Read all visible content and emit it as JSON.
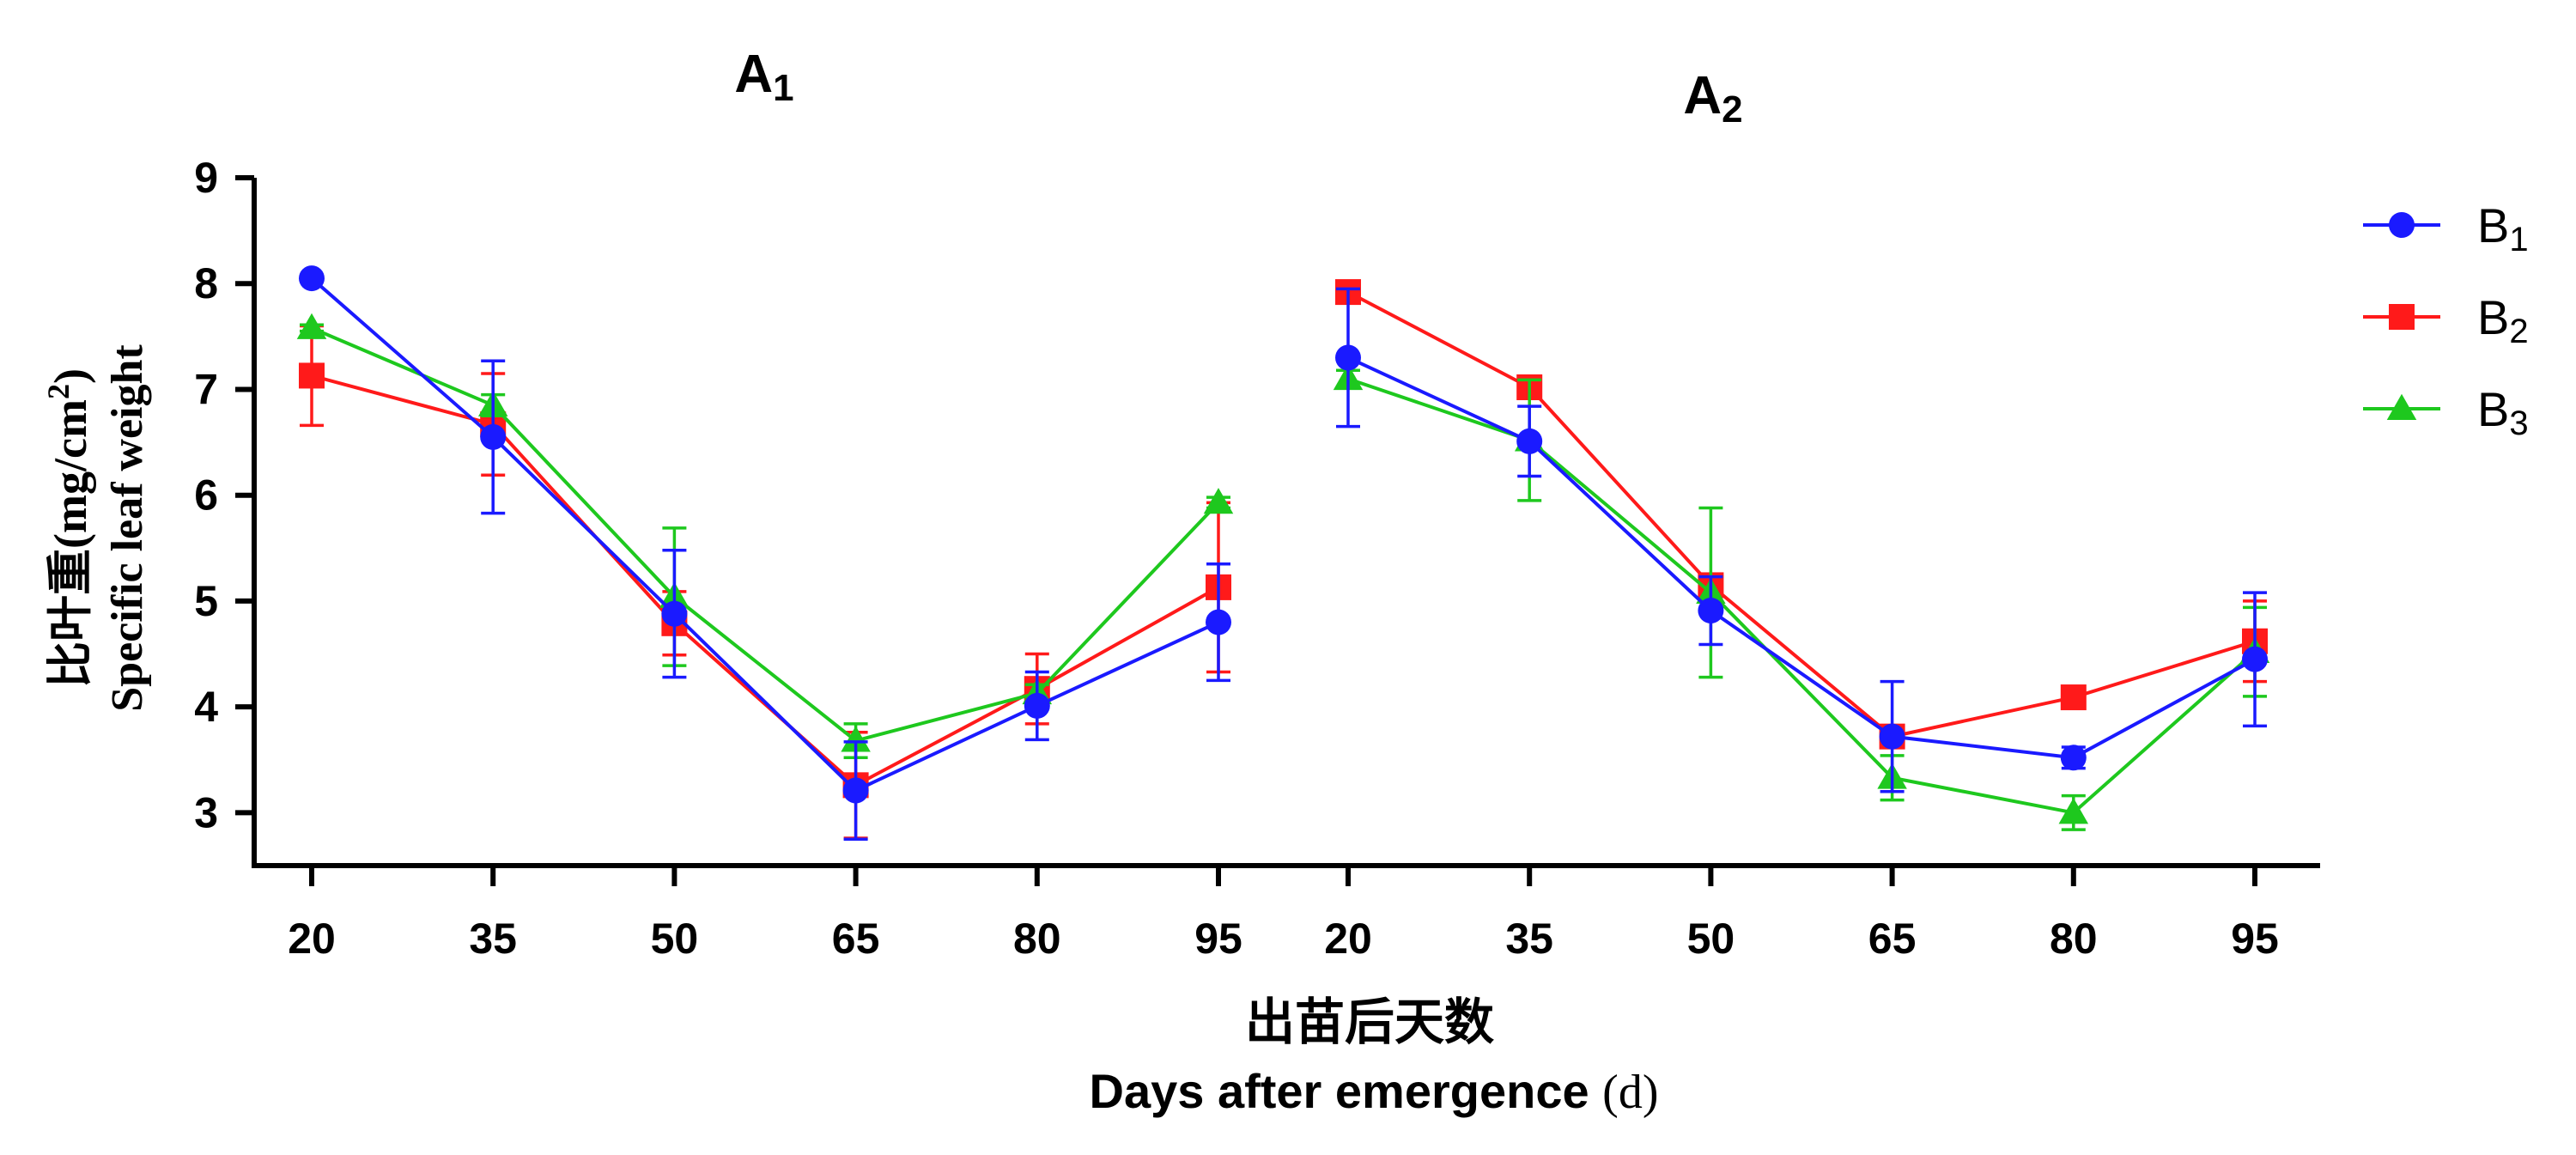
{
  "chart_data": {
    "type": "line",
    "panels": [
      {
        "title": "A",
        "title_sub": "1"
      },
      {
        "title": "A",
        "title_sub": "2"
      }
    ],
    "x": [
      20,
      35,
      50,
      65,
      80,
      95
    ],
    "xtick_labels": [
      "20",
      "35",
      "50",
      "65",
      "80",
      "95"
    ],
    "ylim": [
      2.5,
      9
    ],
    "yticks": [
      3,
      4,
      5,
      6,
      7,
      8,
      9
    ],
    "ytick_labels": [
      "3",
      "4",
      "5",
      "6",
      "7",
      "8",
      "9"
    ],
    "ylabel_cn": "比叶重(mg/cm",
    "ylabel_cn_sup": "2",
    "ylabel_cn_close": ")",
    "ylabel_en": "Specific leaf weight",
    "xlabel_cn": "出苗后天数",
    "xlabel_en": "Days after emergence",
    "xlabel_unit": "(d)",
    "legend_position": "right",
    "series": [
      {
        "name": "B",
        "name_sub": "1",
        "color": "#1a1aff",
        "marker": "circle",
        "A1": {
          "values": [
            8.05,
            6.55,
            4.88,
            3.21,
            4.01,
            4.8
          ],
          "errors": [
            0.0,
            0.72,
            0.6,
            0.46,
            0.32,
            0.55
          ]
        },
        "A2": {
          "values": [
            7.3,
            6.51,
            4.91,
            3.72,
            3.52,
            4.45
          ],
          "errors": [
            0.65,
            0.33,
            0.32,
            0.52,
            0.1,
            0.63
          ]
        }
      },
      {
        "name": "B",
        "name_sub": "2",
        "color": "#ff1a1a",
        "marker": "square",
        "A1": {
          "values": [
            7.13,
            6.67,
            4.79,
            3.26,
            4.17,
            5.13
          ],
          "errors": [
            0.47,
            0.48,
            0.3,
            0.5,
            0.33,
            0.8
          ]
        },
        "A2": {
          "values": [
            7.92,
            7.02,
            5.15,
            3.72,
            4.09,
            4.62
          ],
          "errors": [
            0.05,
            0.05,
            0.08,
            0.05,
            0.05,
            0.38
          ]
        }
      },
      {
        "name": "B",
        "name_sub": "3",
        "color": "#1ec81e",
        "marker": "triangle",
        "A1": {
          "values": [
            7.58,
            6.85,
            5.04,
            3.68,
            4.13,
            5.93
          ],
          "errors": [
            0.03,
            0.1,
            0.65,
            0.16,
            0.08,
            0.05
          ]
        },
        "A2": {
          "values": [
            7.1,
            6.52,
            5.08,
            3.33,
            3.0,
            4.52
          ],
          "errors": [
            0.08,
            0.57,
            0.8,
            0.21,
            0.16,
            0.42
          ]
        }
      }
    ]
  }
}
